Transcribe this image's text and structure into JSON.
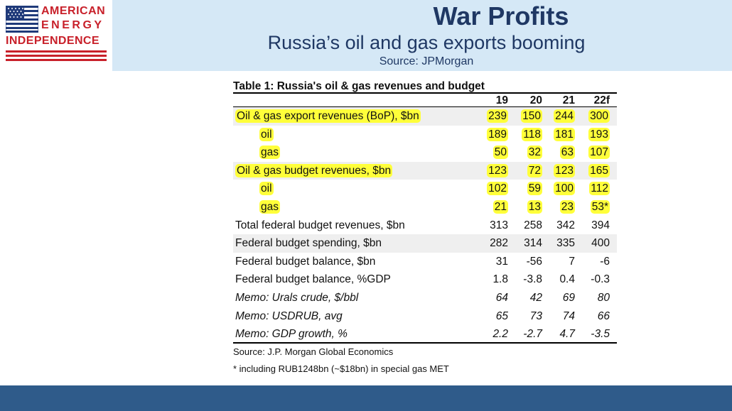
{
  "logo": {
    "line1": "AMERICAN",
    "line2": "ENERGY",
    "line3": "INDEPENDENCE",
    "flag_icon": "us-flag-icon",
    "brand_red": "#c8202a",
    "brand_blue": "#1f3a7a"
  },
  "header": {
    "title": "War Profits",
    "subtitle": "Russia’s oil and gas exports booming",
    "source": "Source: JPMorgan",
    "bg_color": "#d5e8f6",
    "text_color": "#1f3864"
  },
  "table": {
    "title": "Table 1: Russia's oil & gas revenues and budget",
    "columns": [
      "19",
      "20",
      "21",
      "22f"
    ],
    "highlight_color": "#ffff3a",
    "rows": [
      {
        "label": "Oil & gas export revenues (BoP), $bn",
        "values": [
          "239",
          "150",
          "244",
          "300"
        ],
        "indent": false,
        "highlight": true,
        "italic": false,
        "shade": true
      },
      {
        "label": "oil",
        "values": [
          "189",
          "118",
          "181",
          "193"
        ],
        "indent": true,
        "highlight": true,
        "italic": false,
        "shade": false
      },
      {
        "label": "gas",
        "values": [
          "50",
          "32",
          "63",
          "107"
        ],
        "indent": true,
        "highlight": true,
        "italic": false,
        "shade": false
      },
      {
        "label": "Oil & gas budget revenues, $bn",
        "values": [
          "123",
          "72",
          "123",
          "165"
        ],
        "indent": false,
        "highlight": true,
        "italic": false,
        "shade": true
      },
      {
        "label": "oil",
        "values": [
          "102",
          "59",
          "100",
          "112"
        ],
        "indent": true,
        "highlight": true,
        "italic": false,
        "shade": false
      },
      {
        "label": "gas",
        "values": [
          "21",
          "13",
          "23",
          "53*"
        ],
        "indent": true,
        "highlight": true,
        "italic": false,
        "shade": false
      },
      {
        "label": "Total federal budget revenues, $bn",
        "values": [
          "313",
          "258",
          "342",
          "394"
        ],
        "indent": false,
        "highlight": false,
        "italic": false,
        "shade": false
      },
      {
        "label": "Federal budget spending, $bn",
        "values": [
          "282",
          "314",
          "335",
          "400"
        ],
        "indent": false,
        "highlight": false,
        "italic": false,
        "shade": true
      },
      {
        "label": "Federal budget balance, $bn",
        "values": [
          "31",
          "-56",
          "7",
          "-6"
        ],
        "indent": false,
        "highlight": false,
        "italic": false,
        "shade": false
      },
      {
        "label": "Federal budget balance, %GDP",
        "values": [
          "1.8",
          "-3.8",
          "0.4",
          "-0.3"
        ],
        "indent": false,
        "highlight": false,
        "italic": false,
        "shade": false
      },
      {
        "label": "Memo: Urals crude, $/bbl",
        "values": [
          "64",
          "42",
          "69",
          "80"
        ],
        "indent": false,
        "highlight": false,
        "italic": true,
        "shade": false
      },
      {
        "label": "Memo: USDRUB, avg",
        "values": [
          "65",
          "73",
          "74",
          "66"
        ],
        "indent": false,
        "highlight": false,
        "italic": true,
        "shade": false
      },
      {
        "label": "Memo: GDP growth, %",
        "values": [
          "2.2",
          "-2.7",
          "4.7",
          "-3.5"
        ],
        "indent": false,
        "highlight": false,
        "italic": true,
        "shade": false
      }
    ],
    "source": "Source: J.P. Morgan Global Economics",
    "footnote": "* including RUB1248bn (~$18bn) in special gas MET"
  },
  "footer_bar_color": "#2f5b8a"
}
